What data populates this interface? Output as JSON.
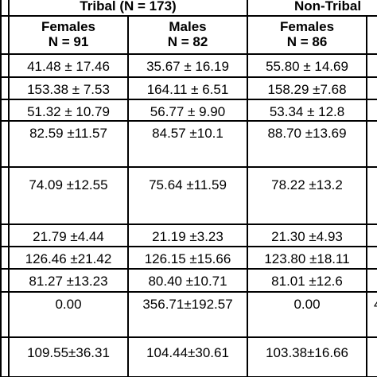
{
  "header": {
    "group1": "Tribal (N = 173)",
    "group2": "Non-Tribal"
  },
  "columns": [
    {
      "label": "Females",
      "n": "N = 91"
    },
    {
      "label": "Males",
      "n": "N = 82"
    },
    {
      "label": "Females",
      "n": "N = 86"
    }
  ],
  "rows": [
    [
      "41.48 ± 17.46",
      "35.67 ± 16.19",
      "55.80 ± 14.69"
    ],
    [
      "153.38 ± 7.53",
      "164.11 ± 6.51",
      "158.29 ±7.68"
    ],
    [
      "51.32 ± 10.79",
      "56.77 ± 9.90",
      "53.34 ± 12.8"
    ],
    [
      "82.59 ±11.57",
      "84.57 ±10.1",
      "88.70 ±13.69"
    ],
    [
      "74.09 ±12.55",
      "75.64 ±11.59",
      "78.22 ±13.2"
    ],
    [
      "21.79 ±4.44",
      "21.19 ±3.23",
      "21.30 ±4.93"
    ],
    [
      "126.46 ±21.42",
      "126.15 ±15.66",
      "123.80 ±18.11"
    ],
    [
      "81.27 ±13.23",
      "80.40 ±10.71",
      "81.01 ±12.6"
    ],
    [
      "0.00",
      "356.71±192.57",
      "0.00"
    ],
    [
      "109.55±36.31",
      "104.44±30.61",
      "103.38±16.66"
    ]
  ],
  "cut_off_text": "4"
}
